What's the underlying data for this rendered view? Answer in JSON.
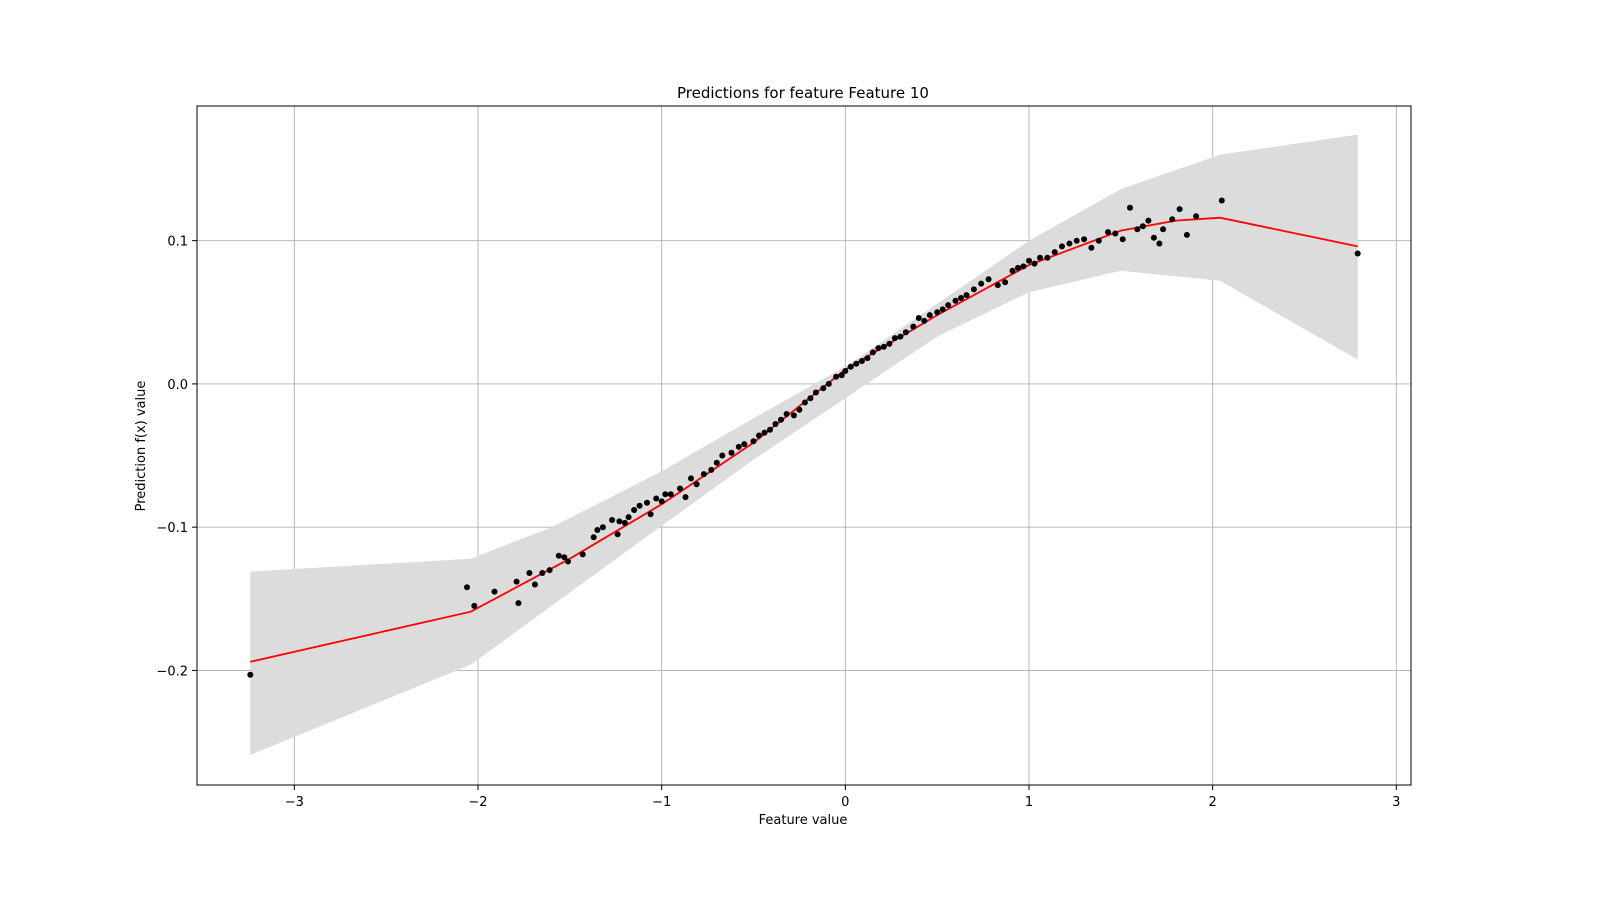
{
  "chart_data": {
    "type": "scatter",
    "title": "Predictions for feature Feature 10",
    "xlabel": "Feature value",
    "ylabel": "Prediction f(x) value",
    "xlim": [
      -3.53,
      3.08
    ],
    "ylim": [
      -0.28,
      0.194
    ],
    "grid": true,
    "x_ticks": [
      -3,
      -2,
      -1,
      0,
      1,
      2,
      3
    ],
    "x_tick_labels": [
      "−3",
      "−2",
      "−1",
      "0",
      "1",
      "2",
      "3"
    ],
    "y_ticks": [
      -0.2,
      -0.1,
      0.0,
      0.1
    ],
    "y_tick_labels": [
      "−0.2",
      "−0.1",
      "0.0",
      "0.1"
    ],
    "colors": {
      "line": "#ff0000",
      "points": "#000000",
      "band": "#dcdcdc"
    },
    "band": {
      "x": [
        -3.24,
        -2.04,
        -1.6,
        -1.0,
        -0.5,
        0.0,
        0.5,
        1.0,
        1.5,
        2.04,
        2.79
      ],
      "upper": [
        -0.131,
        -0.122,
        -0.1,
        -0.061,
        -0.024,
        0.012,
        0.056,
        0.1,
        0.136,
        0.16,
        0.174
      ],
      "lower": [
        -0.259,
        -0.196,
        -0.155,
        -0.099,
        -0.053,
        -0.01,
        0.033,
        0.064,
        0.079,
        0.072,
        0.017
      ]
    },
    "series": [
      {
        "type": "line",
        "x": [
          -3.24,
          -2.04,
          -1.5,
          -1.0,
          -0.5,
          0.0,
          0.5,
          1.0,
          1.5,
          1.8,
          2.04,
          2.79
        ],
        "y": [
          -0.194,
          -0.159,
          -0.122,
          -0.084,
          -0.041,
          0.01,
          0.048,
          0.083,
          0.107,
          0.114,
          0.116,
          0.096
        ]
      },
      {
        "type": "scatter",
        "x": [
          -3.24,
          -2.06,
          -2.02,
          -1.91,
          -1.79,
          -1.78,
          -1.72,
          -1.69,
          -1.65,
          -1.61,
          -1.56,
          -1.53,
          -1.51,
          -1.43,
          -1.37,
          -1.35,
          -1.32,
          -1.27,
          -1.24,
          -1.23,
          -1.2,
          -1.18,
          -1.15,
          -1.12,
          -1.08,
          -1.06,
          -1.03,
          -1.0,
          -0.98,
          -0.95,
          -0.9,
          -0.87,
          -0.84,
          -0.81,
          -0.77,
          -0.73,
          -0.7,
          -0.67,
          -0.62,
          -0.58,
          -0.55,
          -0.5,
          -0.47,
          -0.44,
          -0.41,
          -0.38,
          -0.35,
          -0.32,
          -0.28,
          -0.25,
          -0.22,
          -0.19,
          -0.16,
          -0.12,
          -0.09,
          -0.05,
          -0.02,
          0.0,
          0.03,
          0.06,
          0.09,
          0.12,
          0.15,
          0.18,
          0.21,
          0.24,
          0.27,
          0.3,
          0.33,
          0.37,
          0.4,
          0.43,
          0.46,
          0.5,
          0.53,
          0.56,
          0.6,
          0.63,
          0.66,
          0.7,
          0.74,
          0.78,
          0.83,
          0.87,
          0.91,
          0.94,
          0.97,
          1.0,
          1.03,
          1.06,
          1.1,
          1.14,
          1.18,
          1.22,
          1.26,
          1.3,
          1.34,
          1.38,
          1.43,
          1.47,
          1.51,
          1.55,
          1.59,
          1.62,
          1.65,
          1.68,
          1.71,
          1.73,
          1.78,
          1.82,
          1.86,
          1.91,
          2.05,
          2.79
        ],
        "y": [
          -0.203,
          -0.142,
          -0.155,
          -0.145,
          -0.138,
          -0.153,
          -0.132,
          -0.14,
          -0.132,
          -0.13,
          -0.12,
          -0.121,
          -0.124,
          -0.119,
          -0.107,
          -0.102,
          -0.1,
          -0.095,
          -0.105,
          -0.096,
          -0.097,
          -0.093,
          -0.088,
          -0.085,
          -0.083,
          -0.091,
          -0.08,
          -0.082,
          -0.077,
          -0.077,
          -0.073,
          -0.079,
          -0.066,
          -0.07,
          -0.063,
          -0.06,
          -0.055,
          -0.05,
          -0.048,
          -0.044,
          -0.042,
          -0.04,
          -0.036,
          -0.034,
          -0.032,
          -0.028,
          -0.025,
          -0.021,
          -0.022,
          -0.018,
          -0.013,
          -0.01,
          -0.006,
          -0.003,
          0.0,
          0.005,
          0.006,
          0.009,
          0.012,
          0.014,
          0.016,
          0.018,
          0.022,
          0.025,
          0.026,
          0.028,
          0.032,
          0.033,
          0.036,
          0.04,
          0.046,
          0.044,
          0.048,
          0.05,
          0.052,
          0.055,
          0.058,
          0.06,
          0.062,
          0.066,
          0.07,
          0.073,
          0.069,
          0.071,
          0.079,
          0.081,
          0.082,
          0.086,
          0.084,
          0.088,
          0.088,
          0.092,
          0.096,
          0.098,
          0.1,
          0.101,
          0.095,
          0.1,
          0.106,
          0.105,
          0.101,
          0.123,
          0.108,
          0.11,
          0.114,
          0.102,
          0.098,
          0.108,
          0.115,
          0.122,
          0.104,
          0.117,
          0.128,
          0.091
        ]
      }
    ]
  }
}
